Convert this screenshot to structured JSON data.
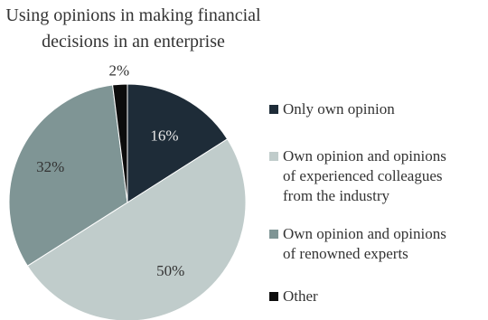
{
  "chart_data": {
    "type": "pie",
    "title": [
      "Using opinions in making financial",
      "decisions in an enterprise"
    ],
    "slices": [
      {
        "label": "Only own opinion",
        "value": 16,
        "display": "16%",
        "color": "#1e2c38",
        "text_color": "#e8e8e8"
      },
      {
        "label": "Own opinion and opinions\nof experienced colleagues\nfrom the industry",
        "value": 50,
        "display": "50%",
        "color": "#c0cccb",
        "text_color": "#333333"
      },
      {
        "label": "Own opinion and opinions\nof renowned experts",
        "value": 32,
        "display": "32%",
        "color": "#7f9595",
        "text_color": "#333333"
      },
      {
        "label": "Other",
        "value": 2,
        "display": "2%",
        "color": "#0c0c0c",
        "text_color": "#333333"
      }
    ],
    "legend": "right"
  }
}
